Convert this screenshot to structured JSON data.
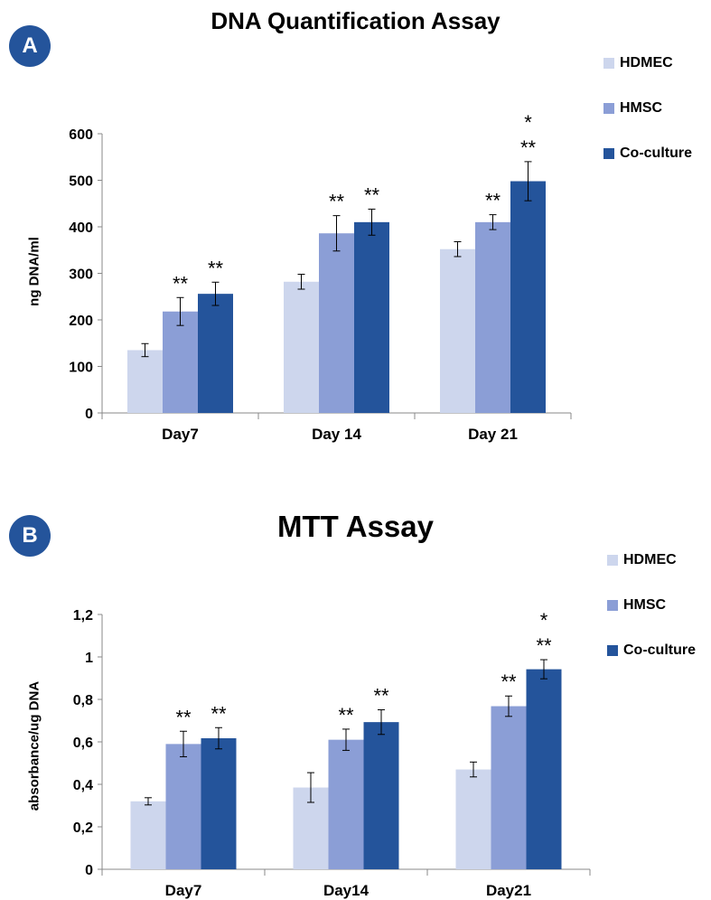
{
  "panels": [
    {
      "badge": "A",
      "chart_data": {
        "type": "bar",
        "title": "DNA Quantification Assay",
        "xlabel": "",
        "ylabel": "ng DNA/ml",
        "categories": [
          "Day7",
          "Day 14",
          "Day 21"
        ],
        "series": [
          {
            "name": "HDMEC",
            "color": "#cdd6ed",
            "values": [
              135,
              282,
              352
            ],
            "errors": [
              14,
              16,
              16
            ],
            "annotations": [
              "",
              "",
              ""
            ]
          },
          {
            "name": "HMSC",
            "color": "#8b9ed6",
            "values": [
              218,
              386,
              410
            ],
            "errors": [
              30,
              38,
              16
            ],
            "annotations": [
              "**",
              "**",
              "**"
            ]
          },
          {
            "name": "Co-culture",
            "color": "#24549b",
            "values": [
              256,
              410,
              498
            ],
            "errors": [
              25,
              28,
              42
            ],
            "annotations": [
              "**",
              "**",
              "*\n**"
            ]
          }
        ],
        "ylim": [
          0,
          600
        ],
        "yticks": [
          "0",
          "100",
          "200",
          "300",
          "400",
          "500",
          "600"
        ],
        "ytick_values": [
          0,
          100,
          200,
          300,
          400,
          500,
          600
        ],
        "legend_position": "right",
        "grid": false
      }
    },
    {
      "badge": "B",
      "chart_data": {
        "type": "bar",
        "title": "MTT Assay",
        "xlabel": "",
        "ylabel": "absorbance/ug DNA",
        "categories": [
          "Day7",
          "Day14",
          "Day21"
        ],
        "series": [
          {
            "name": "HDMEC",
            "color": "#cdd6ed",
            "values": [
              0.32,
              0.385,
              0.47
            ],
            "errors": [
              0.017,
              0.07,
              0.035
            ],
            "annotations": [
              "",
              "",
              ""
            ]
          },
          {
            "name": "HMSC",
            "color": "#8b9ed6",
            "values": [
              0.59,
              0.61,
              0.768
            ],
            "errors": [
              0.06,
              0.05,
              0.048
            ],
            "annotations": [
              "**",
              "**",
              "**"
            ]
          },
          {
            "name": "Co-culture",
            "color": "#24549b",
            "values": [
              0.617,
              0.693,
              0.942
            ],
            "errors": [
              0.05,
              0.058,
              0.045
            ],
            "annotations": [
              "**",
              "**",
              "*\n**"
            ]
          }
        ],
        "ylim": [
          0,
          1.2
        ],
        "yticks": [
          "0",
          "0,2",
          "0,4",
          "0,6",
          "0,8",
          "1",
          "1,2"
        ],
        "ytick_values": [
          0,
          0.2,
          0.4,
          0.6,
          0.8,
          1.0,
          1.2
        ],
        "legend_position": "right",
        "grid": false
      }
    }
  ]
}
